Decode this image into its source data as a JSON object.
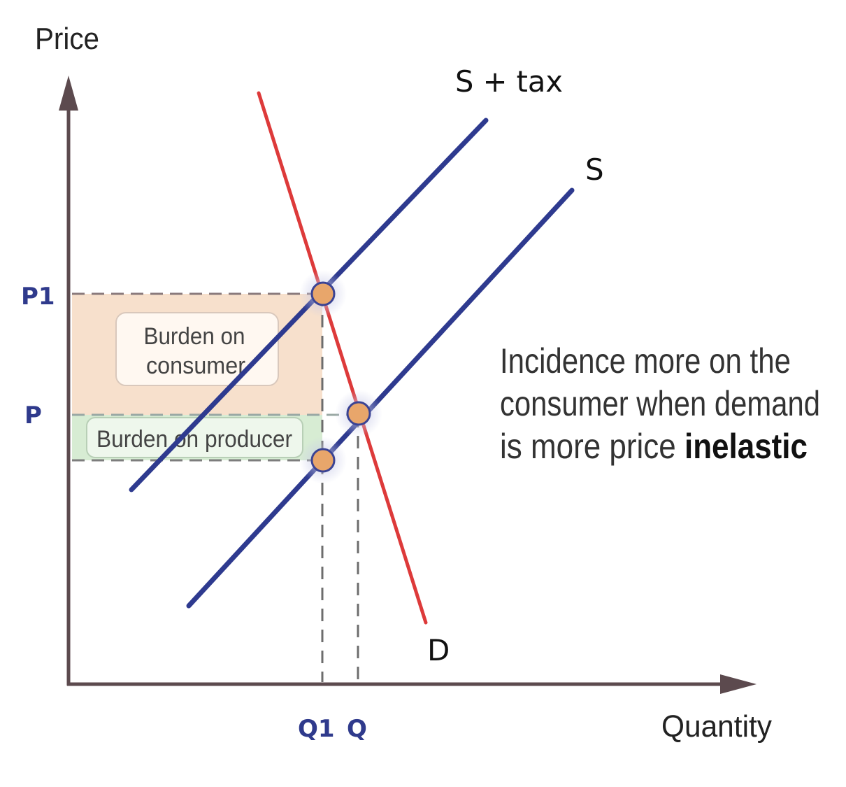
{
  "axes": {
    "y_label": "Price",
    "x_label": "Quantity",
    "y_ticks": {
      "p1": "P1",
      "p": "P"
    },
    "x_ticks": {
      "q1": "Q1",
      "q": "Q"
    }
  },
  "curves": {
    "supply_tax": "S + tax",
    "supply": "S",
    "demand": "D"
  },
  "areas": {
    "consumer_line1": "Burden on",
    "consumer_line2": "consumer",
    "producer": "Burden on producer"
  },
  "note": {
    "line1": "Incidence more on the",
    "line2": "consumer when demand",
    "line3_prefix": "is more price ",
    "line3_bold": "inelastic"
  },
  "colors": {
    "supply": "#2e3a8f",
    "demand": "#dd3a3a",
    "axis": "#5c4a4e",
    "consumer_fill": "#f7e0cc",
    "producer_fill": "#d7ecd3",
    "point_fill": "#e8a66b"
  }
}
